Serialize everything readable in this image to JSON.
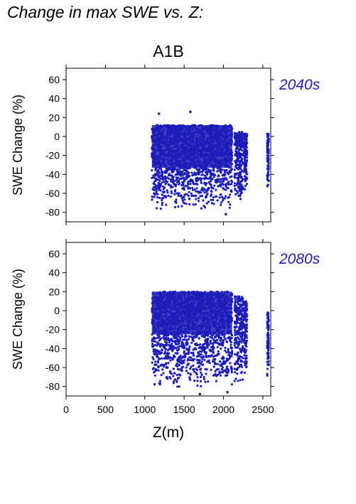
{
  "header": {
    "title": "Change in max SWE vs. Z:"
  },
  "colors": {
    "points": "#1c1cb8",
    "axis": "#000000",
    "label": "#2222aa"
  },
  "chart_data": [
    {
      "type": "scatter",
      "scenario": "A1B",
      "period": "2040s",
      "xlabel": "",
      "ylabel": "SWE Change (%)",
      "xlim": [
        0,
        2600
      ],
      "ylim": [
        -90,
        72
      ],
      "xticks": [
        0,
        500,
        1000,
        1500,
        2000,
        2500
      ],
      "yticks": [
        -80,
        -60,
        -40,
        -20,
        0,
        20,
        40,
        60
      ],
      "bands": [
        {
          "x": [
            1090,
            2110
          ],
          "y": [
            -77,
            12
          ]
        },
        {
          "x": [
            2140,
            2250
          ],
          "y": [
            -70,
            5
          ]
        },
        {
          "x": [
            2260,
            2300
          ],
          "y": [
            -58,
            3
          ]
        },
        {
          "x": [
            2555,
            2575
          ],
          "y": [
            -55,
            3
          ]
        }
      ],
      "outliers": [
        {
          "x": 1180,
          "y": 24
        },
        {
          "x": 1580,
          "y": 26
        },
        {
          "x": 2030,
          "y": -82
        }
      ]
    },
    {
      "type": "scatter",
      "scenario": "A1B",
      "period": "2080s",
      "xlabel": "Z(m)",
      "ylabel": "SWE Change (%)",
      "xlim": [
        0,
        2600
      ],
      "ylim": [
        -90,
        72
      ],
      "xticks": [
        0,
        500,
        1000,
        1500,
        2000,
        2500
      ],
      "xticklabels": [
        "0",
        "500",
        "1000",
        "1500",
        "2000",
        "2500"
      ],
      "yticks": [
        -80,
        -60,
        -40,
        -20,
        0,
        20,
        40,
        60
      ],
      "bands": [
        {
          "x": [
            1090,
            2110
          ],
          "y": [
            -82,
            20
          ]
        },
        {
          "x": [
            2140,
            2250
          ],
          "y": [
            -78,
            15
          ]
        },
        {
          "x": [
            2260,
            2300
          ],
          "y": [
            -70,
            10
          ]
        },
        {
          "x": [
            2555,
            2575
          ],
          "y": [
            -70,
            -2
          ]
        }
      ],
      "outliers": [
        {
          "x": 1700,
          "y": -88
        },
        {
          "x": 2050,
          "y": -86
        }
      ]
    }
  ]
}
